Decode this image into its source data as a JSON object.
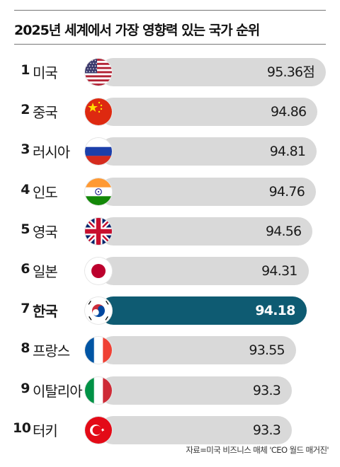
{
  "title": "2025년 세계에서 가장 영향력 있는 국가 순위",
  "source": "자료=미국 비즈니스 매체 'CEO 월드 매거진'",
  "colors": {
    "bar": "#d9d9d9",
    "highlight_bar": "#0e5b72",
    "highlight_text": "#ffffff"
  },
  "chart_data": {
    "type": "bar",
    "orientation": "horizontal",
    "title": "2025년 세계에서 가장 영향력 있는 국가 순위",
    "categories": [
      "미국",
      "중국",
      "러시아",
      "인도",
      "영국",
      "일본",
      "한국",
      "프랑스",
      "이탈리아",
      "터키"
    ],
    "ranks": [
      "1",
      "2",
      "3",
      "4",
      "5",
      "6",
      "7",
      "8",
      "9",
      "10"
    ],
    "values": [
      95.36,
      94.86,
      94.81,
      94.76,
      94.56,
      94.31,
      94.18,
      93.55,
      93.3,
      93.3
    ],
    "value_labels": [
      "95.36점",
      "94.86",
      "94.81",
      "94.76",
      "94.56",
      "94.31",
      "94.18",
      "93.55",
      "93.3",
      "93.3"
    ],
    "flags": [
      "flag-usa-icon",
      "flag-china-icon",
      "flag-russia-icon",
      "flag-india-icon",
      "flag-uk-icon",
      "flag-japan-icon",
      "flag-korea-icon",
      "flag-france-icon",
      "flag-italy-icon",
      "flag-turkey-icon"
    ],
    "highlight": "한국",
    "grid": false
  }
}
